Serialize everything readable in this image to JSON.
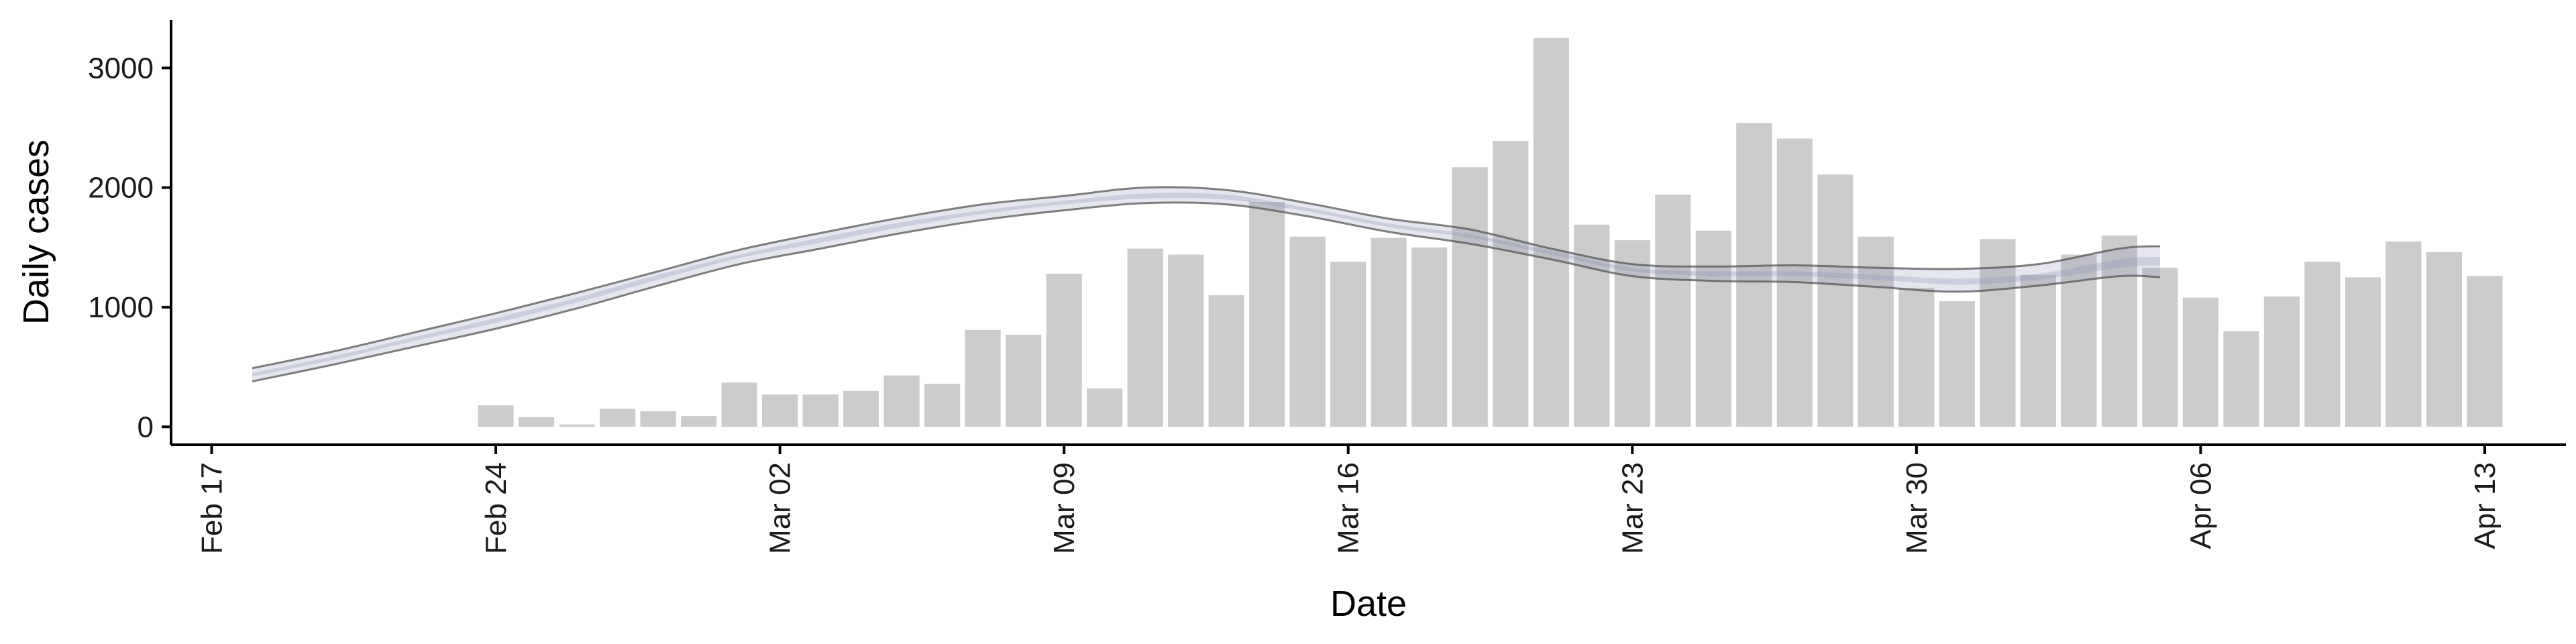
{
  "chart_data": {
    "type": "bar",
    "xlabel": "Date",
    "ylabel": "Daily cases",
    "x_type": "date",
    "xlim": [
      "2020-02-16",
      "2020-04-15"
    ],
    "ylim": [
      -150,
      3400
    ],
    "y_ticks": [
      0,
      1000,
      2000,
      3000
    ],
    "x_ticks": [
      {
        "date": "2020-02-17",
        "label": "Feb 17"
      },
      {
        "date": "2020-02-24",
        "label": "Feb 24"
      },
      {
        "date": "2020-03-02",
        "label": "Mar 02"
      },
      {
        "date": "2020-03-09",
        "label": "Mar 09"
      },
      {
        "date": "2020-03-16",
        "label": "Mar 16"
      },
      {
        "date": "2020-03-23",
        "label": "Mar 23"
      },
      {
        "date": "2020-03-30",
        "label": "Mar 30"
      },
      {
        "date": "2020-04-06",
        "label": "Apr 06"
      },
      {
        "date": "2020-04-13",
        "label": "Apr 13"
      }
    ],
    "grid": false,
    "legend": "none",
    "bar_color": "#cccccc",
    "band_color": "#8a8fb0",
    "band_line_color": "#555555",
    "bars": {
      "x": [
        "2020-02-24",
        "2020-02-25",
        "2020-02-26",
        "2020-02-27",
        "2020-02-28",
        "2020-02-29",
        "2020-03-01",
        "2020-03-02",
        "2020-03-03",
        "2020-03-04",
        "2020-03-05",
        "2020-03-06",
        "2020-03-07",
        "2020-03-08",
        "2020-03-09",
        "2020-03-10",
        "2020-03-11",
        "2020-03-12",
        "2020-03-13",
        "2020-03-14",
        "2020-03-15",
        "2020-03-16",
        "2020-03-17",
        "2020-03-18",
        "2020-03-19",
        "2020-03-20",
        "2020-03-21",
        "2020-03-22",
        "2020-03-23",
        "2020-03-24",
        "2020-03-25",
        "2020-03-26",
        "2020-03-27",
        "2020-03-28",
        "2020-03-29",
        "2020-03-30",
        "2020-03-31",
        "2020-04-01",
        "2020-04-02",
        "2020-04-03",
        "2020-04-04",
        "2020-04-05",
        "2020-04-06",
        "2020-04-07",
        "2020-04-08",
        "2020-04-09",
        "2020-04-10",
        "2020-04-11",
        "2020-04-12",
        "2020-04-13"
      ],
      "values": [
        180,
        80,
        20,
        150,
        130,
        90,
        370,
        270,
        270,
        300,
        430,
        360,
        810,
        770,
        1280,
        320,
        1490,
        1440,
        1100,
        1880,
        1590,
        1380,
        1580,
        1500,
        2170,
        2390,
        3250,
        1690,
        1560,
        1940,
        1640,
        2540,
        2410,
        2110,
        1590,
        1160,
        1050,
        1570,
        1270,
        1440,
        1600,
        1330,
        1080,
        800,
        1090,
        1380,
        1250,
        1550,
        1460,
        1260
      ]
    },
    "bands": [
      {
        "x": [
          "2020-02-18",
          "2020-02-20",
          "2020-02-22",
          "2020-02-24",
          "2020-02-26",
          "2020-02-28",
          "2020-03-01",
          "2020-03-03",
          "2020-03-05",
          "2020-03-07",
          "2020-03-09",
          "2020-03-11",
          "2020-03-13",
          "2020-03-15",
          "2020-03-17",
          "2020-03-19",
          "2020-03-21",
          "2020-03-23",
          "2020-03-25",
          "2020-03-27",
          "2020-03-29",
          "2020-03-31",
          "2020-04-02",
          "2020-04-04",
          "2020-04-05"
        ],
        "lower": [
          380,
          520,
          670,
          820,
          990,
          1180,
          1360,
          1490,
          1620,
          1730,
          1810,
          1870,
          1860,
          1760,
          1630,
          1530,
          1400,
          1260,
          1220,
          1210,
          1170,
          1130,
          1180,
          1260,
          1250
        ],
        "upper": [
          490,
          630,
          790,
          950,
          1120,
          1300,
          1480,
          1620,
          1750,
          1860,
          1930,
          2000,
          1980,
          1870,
          1740,
          1650,
          1490,
          1360,
          1340,
          1350,
          1330,
          1320,
          1360,
          1490,
          1510
        ]
      },
      {
        "x": [
          "2020-02-18",
          "2020-02-20",
          "2020-02-22",
          "2020-02-24",
          "2020-02-26",
          "2020-02-28",
          "2020-03-01",
          "2020-03-03",
          "2020-03-05",
          "2020-03-07",
          "2020-03-09",
          "2020-03-11",
          "2020-03-13",
          "2020-03-15",
          "2020-03-17",
          "2020-03-19",
          "2020-03-21",
          "2020-03-23",
          "2020-03-25",
          "2020-03-27",
          "2020-03-29",
          "2020-03-31",
          "2020-04-02",
          "2020-04-04",
          "2020-04-05"
        ],
        "lower": [
          420,
          560,
          720,
          870,
          1040,
          1230,
          1410,
          1540,
          1670,
          1780,
          1860,
          1910,
          1900,
          1800,
          1670,
          1580,
          1440,
          1300,
          1260,
          1260,
          1230,
          1190,
          1230,
          1330,
          1350
        ],
        "upper": [
          450,
          590,
          750,
          910,
          1080,
          1270,
          1440,
          1580,
          1710,
          1810,
          1890,
          1950,
          1940,
          1830,
          1700,
          1610,
          1470,
          1330,
          1300,
          1300,
          1270,
          1240,
          1280,
          1400,
          1420
        ]
      }
    ]
  }
}
